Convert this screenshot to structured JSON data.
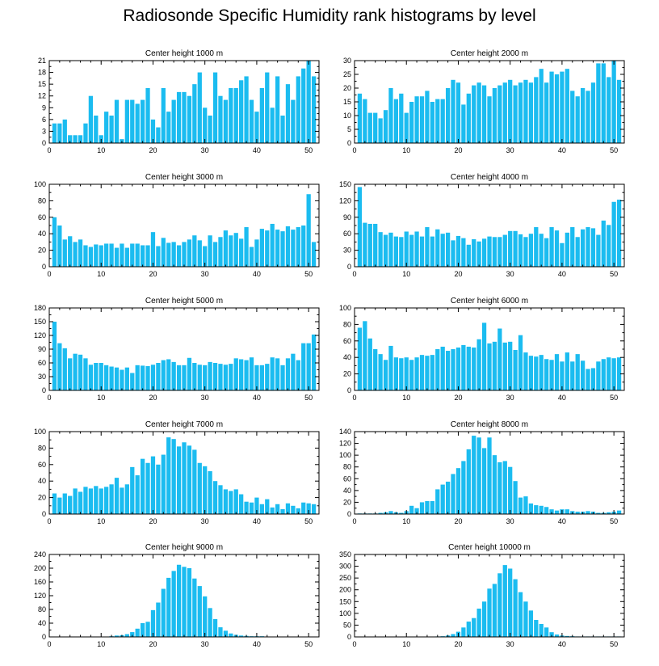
{
  "title": "Radiosonde Specific Humidity rank histograms by level",
  "chart_data": [
    {
      "type": "bar",
      "title": "Center height 1000 m",
      "colors": {
        "bar": "#1bbcf0",
        "axis": "#000000"
      },
      "xlim": [
        0,
        52
      ],
      "ylim": [
        0,
        21
      ],
      "xticks": [
        0,
        10,
        20,
        30,
        40,
        50
      ],
      "yticks": [
        0,
        3,
        6,
        9,
        12,
        15,
        18,
        21
      ],
      "x_start": 1,
      "values": [
        5,
        5,
        6,
        2,
        2,
        2,
        5,
        12,
        7,
        2,
        8,
        7,
        11,
        1,
        11,
        11,
        10,
        11,
        14,
        6,
        4,
        14,
        8,
        11,
        13,
        13,
        12,
        15,
        18,
        9,
        7,
        18,
        12,
        11,
        14,
        14,
        16,
        17,
        11,
        8,
        14,
        18,
        9,
        17,
        7,
        15,
        11,
        17,
        19,
        21,
        17
      ]
    },
    {
      "type": "bar",
      "title": "Center height 2000 m",
      "colors": {
        "bar": "#1bbcf0",
        "axis": "#000000"
      },
      "xlim": [
        0,
        52
      ],
      "ylim": [
        0,
        30
      ],
      "xticks": [
        0,
        10,
        20,
        30,
        40,
        50
      ],
      "yticks": [
        0,
        5,
        10,
        15,
        20,
        25,
        30
      ],
      "x_start": 1,
      "values": [
        18,
        16,
        11,
        11,
        9,
        12,
        20,
        16,
        18,
        11,
        15,
        17,
        17,
        19,
        15,
        16,
        16,
        20,
        23,
        22,
        14,
        18,
        21,
        22,
        21,
        17,
        20,
        21,
        22,
        23,
        21,
        22,
        23,
        22,
        24,
        27,
        22,
        26,
        25,
        26,
        27,
        19,
        17,
        20,
        19,
        22,
        29,
        29,
        24,
        30,
        23
      ]
    },
    {
      "type": "bar",
      "title": "Center height 3000 m",
      "colors": {
        "bar": "#1bbcf0",
        "axis": "#000000"
      },
      "xlim": [
        0,
        52
      ],
      "ylim": [
        0,
        100
      ],
      "xticks": [
        0,
        10,
        20,
        30,
        40,
        50
      ],
      "yticks": [
        0,
        20,
        40,
        60,
        80,
        100
      ],
      "x_start": 1,
      "values": [
        60,
        50,
        33,
        37,
        30,
        33,
        26,
        24,
        27,
        26,
        28,
        28,
        23,
        28,
        23,
        28,
        28,
        26,
        26,
        42,
        25,
        35,
        29,
        30,
        26,
        30,
        33,
        38,
        32,
        25,
        38,
        30,
        36,
        44,
        38,
        41,
        34,
        48,
        24,
        33,
        46,
        44,
        52,
        45,
        43,
        49,
        45,
        48,
        50,
        88,
        30
      ]
    },
    {
      "type": "bar",
      "title": "Center height 4000 m",
      "colors": {
        "bar": "#1bbcf0",
        "axis": "#000000"
      },
      "xlim": [
        0,
        52
      ],
      "ylim": [
        0,
        150
      ],
      "xticks": [
        0,
        10,
        20,
        30,
        40,
        50
      ],
      "yticks": [
        0,
        30,
        60,
        90,
        120,
        150
      ],
      "x_start": 1,
      "values": [
        145,
        80,
        78,
        78,
        63,
        58,
        62,
        55,
        54,
        64,
        58,
        64,
        55,
        72,
        55,
        68,
        60,
        62,
        48,
        56,
        52,
        40,
        50,
        46,
        51,
        55,
        54,
        54,
        58,
        65,
        65,
        59,
        54,
        60,
        72,
        60,
        52,
        72,
        66,
        43,
        62,
        72,
        54,
        68,
        72,
        70,
        58,
        84,
        76,
        118,
        122
      ]
    },
    {
      "type": "bar",
      "title": "Center height 5000 m",
      "colors": {
        "bar": "#1bbcf0",
        "axis": "#000000"
      },
      "xlim": [
        0,
        52
      ],
      "ylim": [
        0,
        180
      ],
      "xticks": [
        0,
        10,
        20,
        30,
        40,
        50
      ],
      "yticks": [
        0,
        30,
        60,
        90,
        120,
        150,
        180
      ],
      "x_start": 1,
      "values": [
        150,
        103,
        92,
        70,
        80,
        78,
        70,
        56,
        60,
        60,
        55,
        52,
        50,
        45,
        50,
        38,
        55,
        54,
        53,
        56,
        60,
        66,
        68,
        62,
        55,
        55,
        71,
        60,
        56,
        55,
        62,
        60,
        58,
        56,
        58,
        70,
        68,
        66,
        72,
        55,
        55,
        58,
        72,
        70,
        55,
        70,
        80,
        66,
        103,
        103,
        122
      ]
    },
    {
      "type": "bar",
      "title": "Center height 6000 m",
      "colors": {
        "bar": "#1bbcf0",
        "axis": "#000000"
      },
      "xlim": [
        0,
        52
      ],
      "ylim": [
        0,
        100
      ],
      "xticks": [
        0,
        10,
        20,
        30,
        40,
        50
      ],
      "yticks": [
        0,
        20,
        40,
        60,
        80,
        100
      ],
      "x_start": 1,
      "values": [
        76,
        84,
        63,
        50,
        44,
        37,
        54,
        40,
        39,
        40,
        37,
        40,
        43,
        42,
        43,
        50,
        53,
        48,
        50,
        52,
        55,
        53,
        52,
        62,
        82,
        57,
        59,
        75,
        58,
        59,
        49,
        67,
        46,
        42,
        41,
        43,
        38,
        37,
        44,
        35,
        46,
        35,
        44,
        36,
        26,
        27,
        35,
        38,
        40,
        39,
        40
      ]
    },
    {
      "type": "bar",
      "title": "Center height 7000 m",
      "colors": {
        "bar": "#1bbcf0",
        "axis": "#000000"
      },
      "xlim": [
        0,
        52
      ],
      "ylim": [
        0,
        100
      ],
      "xticks": [
        0,
        10,
        20,
        30,
        40,
        50
      ],
      "yticks": [
        0,
        20,
        40,
        60,
        80,
        100
      ],
      "x_start": 1,
      "values": [
        25,
        20,
        25,
        22,
        31,
        27,
        33,
        31,
        34,
        31,
        33,
        36,
        44,
        32,
        36,
        57,
        47,
        67,
        62,
        70,
        60,
        72,
        93,
        91,
        82,
        87,
        83,
        78,
        62,
        58,
        52,
        40,
        35,
        30,
        28,
        30,
        24,
        15,
        14,
        20,
        12,
        18,
        8,
        12,
        6,
        13,
        10,
        7,
        14,
        13,
        12
      ]
    },
    {
      "type": "bar",
      "title": "Center height 8000 m",
      "colors": {
        "bar": "#1bbcf0",
        "axis": "#000000"
      },
      "xlim": [
        0,
        52
      ],
      "ylim": [
        0,
        140
      ],
      "xticks": [
        0,
        10,
        20,
        30,
        40,
        50
      ],
      "yticks": [
        0,
        20,
        40,
        60,
        80,
        100,
        120,
        140
      ],
      "x_start": 1,
      "values": [
        1,
        1,
        1,
        1,
        2,
        3,
        5,
        3,
        2,
        5,
        14,
        10,
        20,
        22,
        22,
        42,
        50,
        55,
        68,
        78,
        90,
        110,
        133,
        130,
        112,
        130,
        100,
        88,
        90,
        80,
        56,
        28,
        30,
        18,
        15,
        14,
        12,
        8,
        6,
        8,
        8,
        5,
        4,
        4,
        5,
        4,
        2,
        2,
        3,
        4,
        6
      ]
    },
    {
      "type": "bar",
      "title": "Center height 9000 m",
      "colors": {
        "bar": "#1bbcf0",
        "axis": "#000000"
      },
      "xlim": [
        0,
        52
      ],
      "ylim": [
        0,
        240
      ],
      "xticks": [
        0,
        10,
        20,
        30,
        40,
        50
      ],
      "yticks": [
        0,
        40,
        80,
        120,
        160,
        200,
        240
      ],
      "x_start": 1,
      "values": [
        1,
        1,
        1,
        1,
        1,
        1,
        1,
        1,
        1,
        1,
        1,
        2,
        4,
        5,
        8,
        14,
        24,
        40,
        44,
        78,
        100,
        140,
        172,
        192,
        210,
        204,
        200,
        170,
        148,
        118,
        84,
        52,
        28,
        18,
        10,
        6,
        4,
        3,
        2,
        2,
        2,
        1,
        1,
        1,
        1,
        1,
        1,
        1,
        1,
        1,
        1
      ]
    },
    {
      "type": "bar",
      "title": "Center height 10000 m",
      "colors": {
        "bar": "#1bbcf0",
        "axis": "#000000"
      },
      "xlim": [
        0,
        52
      ],
      "ylim": [
        0,
        350
      ],
      "xticks": [
        0,
        10,
        20,
        30,
        40,
        50
      ],
      "yticks": [
        0,
        50,
        100,
        150,
        200,
        250,
        300,
        350
      ],
      "x_start": 1,
      "values": [
        1,
        1,
        1,
        1,
        1,
        1,
        1,
        1,
        1,
        1,
        1,
        1,
        1,
        1,
        1,
        2,
        3,
        6,
        12,
        22,
        40,
        65,
        80,
        120,
        150,
        205,
        225,
        270,
        305,
        290,
        245,
        190,
        150,
        112,
        72,
        55,
        40,
        20,
        10,
        6,
        4,
        3,
        2,
        2,
        2,
        2,
        2,
        2,
        2,
        2,
        2
      ]
    }
  ]
}
